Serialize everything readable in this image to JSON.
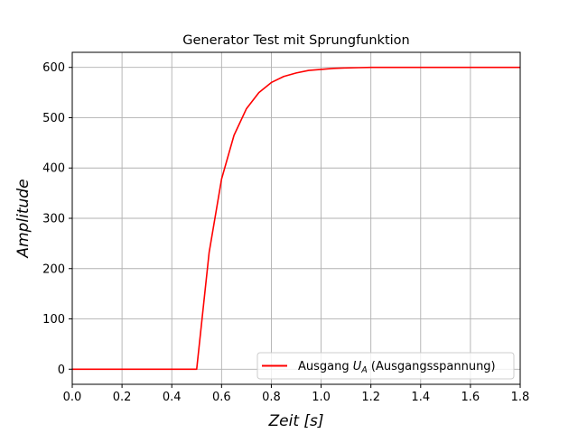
{
  "chart_data": {
    "type": "line",
    "title": "Generator Test mit Sprungfunktion",
    "xlabel": "Zeit [s]",
    "ylabel": "Amplitude",
    "xlim": [
      0.0,
      1.8
    ],
    "ylim": [
      -30,
      630
    ],
    "xticks": [
      0.0,
      0.2,
      0.4,
      0.6,
      0.8,
      1.0,
      1.2,
      1.4,
      1.6,
      1.8
    ],
    "xtick_labels": [
      "0.0",
      "0.2",
      "0.4",
      "0.6",
      "0.8",
      "1.0",
      "1.2",
      "1.4",
      "1.6",
      "1.8"
    ],
    "yticks": [
      0,
      100,
      200,
      300,
      400,
      500,
      600
    ],
    "ytick_labels": [
      "0",
      "100",
      "200",
      "300",
      "400",
      "500",
      "600"
    ],
    "grid": true,
    "legend_position": "lower-right",
    "series": [
      {
        "name": "Ausgang U_A (Ausgangsspannung)",
        "legend_prefix": "Ausgang ",
        "legend_var": "U",
        "legend_sub": "A",
        "legend_suffix": " (Ausgangsspannung)",
        "color": "#ff0000",
        "x": [
          0.0,
          0.05,
          0.1,
          0.15,
          0.2,
          0.25,
          0.3,
          0.35,
          0.4,
          0.45,
          0.5,
          0.55,
          0.6,
          0.65,
          0.7,
          0.75,
          0.8,
          0.85,
          0.9,
          0.95,
          1.0,
          1.05,
          1.1,
          1.15,
          1.2,
          1.3,
          1.4,
          1.5,
          1.6,
          1.7,
          1.8
        ],
        "y": [
          0,
          0,
          0,
          0,
          0,
          0,
          0,
          0,
          0,
          0,
          0,
          232,
          378,
          465,
          518,
          550,
          570,
          582,
          589,
          594,
          596,
          598,
          599,
          599.5,
          600,
          600,
          600,
          600,
          600,
          600,
          600
        ]
      }
    ]
  }
}
